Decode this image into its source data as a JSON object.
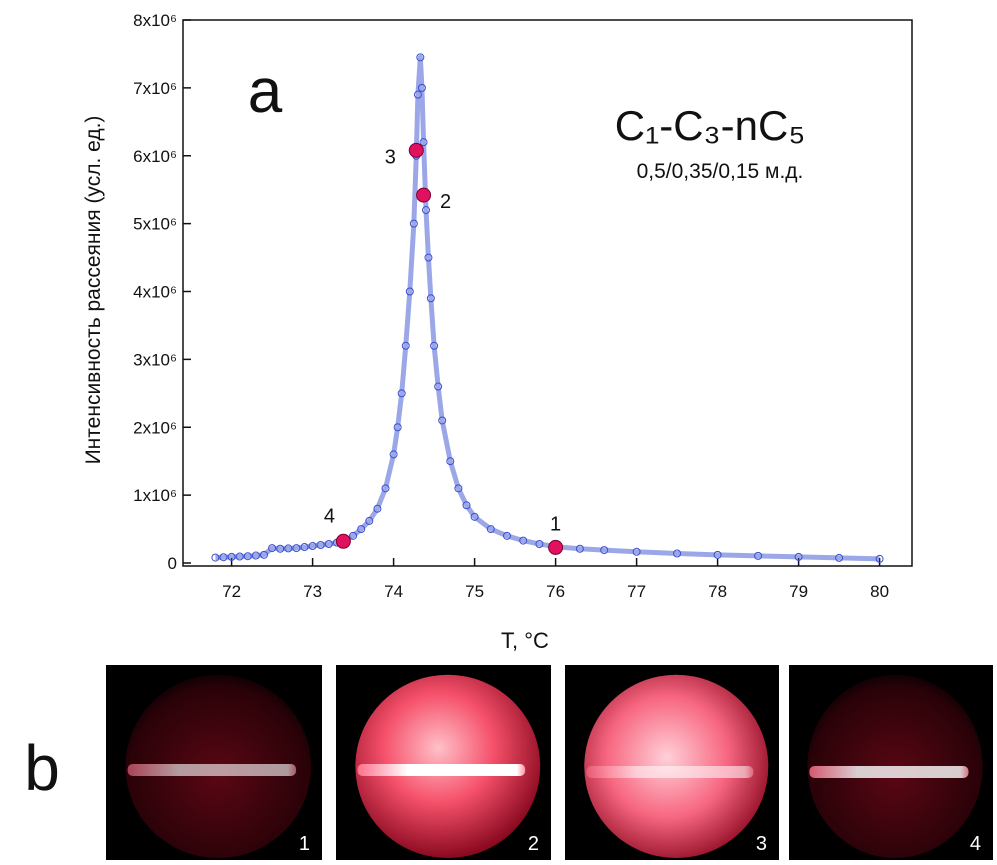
{
  "chart_data": {
    "type": "scatter",
    "panel_label": "a",
    "title": "C₁-C₃-nC₅",
    "subtitle": "0,5/0,35/0,15 м.д.",
    "x_label": "T, °C",
    "y_label": "Интенсивность рассеяния (усл. ед.)",
    "xlim": [
      71.4,
      80.4
    ],
    "ylim": [
      0,
      8000000
    ],
    "xticks": [
      72,
      73,
      74,
      75,
      76,
      77,
      78,
      79,
      80
    ],
    "yticks": [
      0,
      {
        "value": 1000000,
        "label": "1x10⁶"
      },
      {
        "value": 2000000,
        "label": "2x10⁶"
      },
      {
        "value": 3000000,
        "label": "3x10⁶"
      },
      {
        "value": 4000000,
        "label": "4x10⁶"
      },
      {
        "value": 5000000,
        "label": "5x10⁶"
      },
      {
        "value": 6000000,
        "label": "6x10⁶"
      },
      {
        "value": 7000000,
        "label": "7x10⁶"
      },
      {
        "value": 8000000,
        "label": "8x10⁶"
      }
    ],
    "series": [
      {
        "color": "#3a4fd0",
        "x": [
          71.8,
          71.9,
          72.0,
          72.1,
          72.2,
          72.3,
          72.4,
          72.5,
          72.6,
          72.7,
          72.8,
          72.9,
          73.0,
          73.1,
          73.2,
          73.3,
          73.4,
          73.5,
          73.6,
          73.7,
          73.8,
          73.9,
          74.0,
          74.05,
          74.1,
          74.15,
          74.2,
          74.25,
          74.28,
          74.3,
          74.33,
          74.35,
          74.37,
          74.4,
          74.43,
          74.46,
          74.5,
          74.55,
          74.6,
          74.7,
          74.8,
          74.9,
          75.0,
          75.2,
          75.4,
          75.6,
          75.8,
          76.0,
          76.3,
          76.6,
          77.0,
          77.5,
          78.0,
          78.5,
          79.0,
          79.5,
          80.0
        ],
        "values": [
          80000,
          85000,
          90000,
          95000,
          100000,
          110000,
          120000,
          220000,
          210000,
          215000,
          220000,
          235000,
          250000,
          265000,
          280000,
          300000,
          330000,
          400000,
          500000,
          620000,
          800000,
          1100000,
          1600000,
          2000000,
          2500000,
          3200000,
          4000000,
          5000000,
          6000000,
          6900000,
          7450000,
          7000000,
          6200000,
          5200000,
          4500000,
          3900000,
          3200000,
          2600000,
          2100000,
          1500000,
          1100000,
          850000,
          680000,
          500000,
          400000,
          330000,
          280000,
          240000,
          210000,
          190000,
          165000,
          140000,
          120000,
          105000,
          90000,
          75000,
          60000
        ]
      }
    ],
    "points": {
      "color": "#e0115f",
      "labels": [
        "1",
        "2",
        "3",
        "4"
      ],
      "x": [
        76.0,
        74.37,
        74.28,
        73.38
      ],
      "values": [
        230000,
        5420000,
        6080000,
        320000
      ]
    }
  },
  "panel_b": {
    "label": "b",
    "images": [
      "1",
      "2",
      "3",
      "4"
    ]
  }
}
